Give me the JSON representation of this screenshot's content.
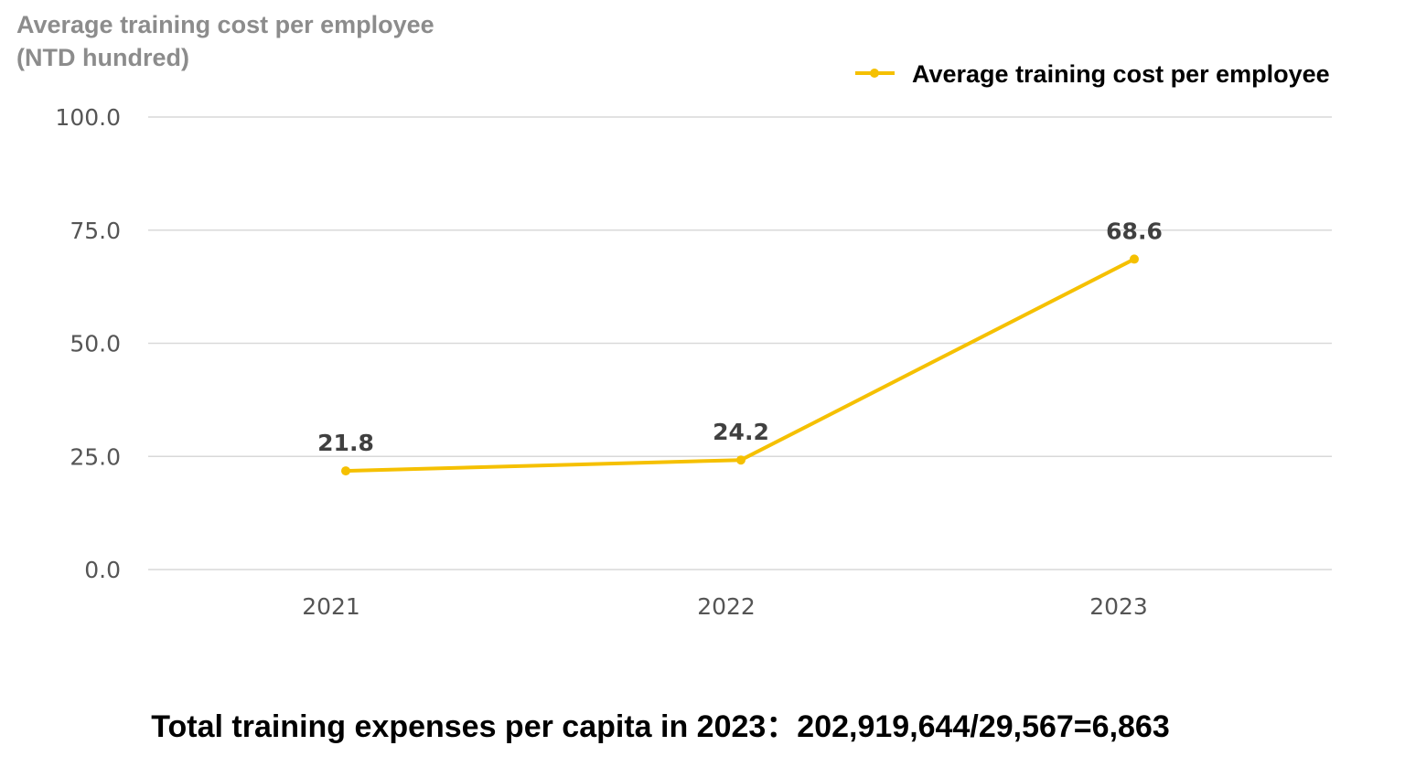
{
  "chart_data": {
    "type": "line",
    "ylabel_lines": [
      "Average training cost per employee",
      "(NTD hundred)"
    ],
    "categories": [
      "2021",
      "2022",
      "2023"
    ],
    "series": [
      {
        "name": "Average training cost per employee",
        "values": [
          21.8,
          24.2,
          68.6
        ],
        "color": "#f5c000"
      }
    ],
    "data_labels": [
      "21.8",
      "24.2",
      "68.6"
    ],
    "y_ticks": [
      "0.0",
      "25.0",
      "50.0",
      "75.0",
      "100.0"
    ],
    "y_tick_values": [
      0,
      25,
      50,
      75,
      100
    ],
    "ylim": [
      0,
      100
    ],
    "grid": true,
    "legend": "top-right"
  },
  "footnote": "Total training expenses per capita in 2023：202,919,644/29,567=6,863",
  "colors": {
    "gridline": "#d9d9d9",
    "line": "#f5c000"
  }
}
